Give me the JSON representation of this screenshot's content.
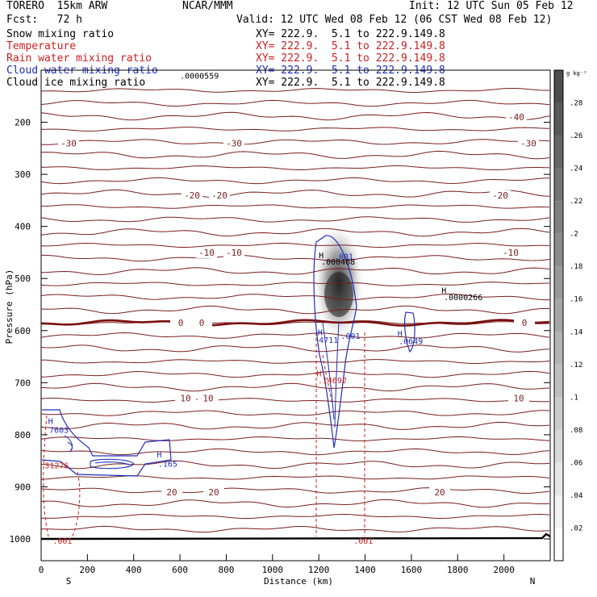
{
  "header": {
    "model": "TORERO  15km ARW",
    "center": "NCAR/MMM",
    "init": "Init: 12 UTC Sun 05 Feb 12",
    "fcst": "Fcst:   72 h",
    "valid": "Valid: 12 UTC Wed 08 Feb 12 (06 CST Wed 08 Feb 12)"
  },
  "fields": [
    {
      "label": "Snow mixing ratio",
      "xy": "XY= 222.9.  5.1 to 222.9.149.8",
      "color": "#000000"
    },
    {
      "label": "Temperature",
      "xy": "XY= 222.9.  5.1 to 222.9.149.8",
      "color": "#cc1e1e"
    },
    {
      "label": "Rain water mixing ratio",
      "xy": "XY= 222.9.  5.1 to 222.9.149.8",
      "color": "#cc1e1e"
    },
    {
      "label": "Cloud water mixing ratio",
      "xy": "XY= 222.9.  5.1 to 222.9.149.8",
      "color": "#1f2fbf"
    },
    {
      "label": "Cloud ice mixing ratio",
      "xy": "XY= 222.9.  5.1 to 222.9.149.8",
      "color": "#000000"
    }
  ],
  "chart_data": {
    "type": "heatmap",
    "xlabel": "Distance (km)",
    "ylabel": "Pressure (hPa)",
    "xlim": [
      0,
      2200
    ],
    "ylim": [
      1000,
      100
    ],
    "x_ticks": [
      0,
      200,
      400,
      600,
      800,
      1000,
      1200,
      1400,
      1600,
      1800,
      2000
    ],
    "y_ticks": [
      200,
      300,
      400,
      500,
      600,
      700,
      800,
      900,
      1000
    ],
    "endpoints": {
      "left": "S",
      "right": "N"
    },
    "colorbar": {
      "unit": "g kg⁻¹",
      "ticks": [
        ".02",
        ".04",
        ".06",
        ".08",
        ".1",
        ".12",
        ".14",
        ".16",
        ".18",
        ".2",
        ".22",
        ".24",
        ".26",
        ".28"
      ],
      "colors": [
        "#ffffff",
        "#f3f3f3",
        "#e6e6e6",
        "#d9d9d9",
        "#cccccc",
        "#bfbfbf",
        "#b3b3b3",
        "#a6a6a6",
        "#999999",
        "#8c8c8c",
        "#808080",
        "#737373",
        "#666666",
        "#595959",
        "#4d4d4d"
      ]
    },
    "temperature_contours": [
      {
        "label": "-40",
        "pressure": 190
      },
      {
        "label": "-30",
        "pressure": 240
      },
      {
        "label": "-20",
        "pressure": 340
      },
      {
        "label": "-10",
        "pressure": 450
      },
      {
        "label": "0",
        "pressure": 585
      },
      {
        "label": "10",
        "pressure": 730
      },
      {
        "label": "20",
        "pressure": 910
      }
    ],
    "annotations": [
      {
        "text": "H",
        "x": 1200,
        "p": 455,
        "color": "#000000"
      },
      {
        "text": ".000468",
        "x": 1210,
        "p": 467,
        "color": "#000000"
      },
      {
        "text": ".001",
        "x": 1265,
        "p": 457,
        "color": "#1f2fbf"
      },
      {
        "text": ".0000559",
        "x": 600,
        "p": 110,
        "color": "#000000"
      },
      {
        "text": "H",
        "x": 1730,
        "p": 522,
        "color": "#000000"
      },
      {
        "text": ".0000266",
        "x": 1740,
        "p": 535,
        "color": "#000000"
      },
      {
        "text": "H",
        "x": 1195,
        "p": 603,
        "color": "#1f2fbf"
      },
      {
        "text": "4711",
        "x": 1200,
        "p": 617,
        "color": "#1f2fbf"
      },
      {
        "text": ".001",
        "x": 1295,
        "p": 610,
        "color": "#1f2fbf"
      },
      {
        "text": "H",
        "x": 1540,
        "p": 605,
        "color": "#1f2fbf"
      },
      {
        "text": ".0649",
        "x": 1545,
        "p": 620,
        "color": "#1f2fbf"
      },
      {
        "text": "H",
        "x": 1190,
        "p": 682,
        "color": "#cc1e1e"
      },
      {
        "text": ".14692",
        "x": 1195,
        "p": 695,
        "color": "#cc1e1e"
      },
      {
        "text": "H",
        "x": 30,
        "p": 773,
        "color": "#1f2fbf"
      },
      {
        "text": "7603",
        "x": 35,
        "p": 790,
        "color": "#1f2fbf"
      },
      {
        "text": "31276",
        "x": 15,
        "p": 858,
        "color": "#cc1e1e"
      },
      {
        "text": "H",
        "x": 500,
        "p": 837,
        "color": "#1f2fbf"
      },
      {
        "text": ".165",
        "x": 505,
        "p": 855,
        "color": "#1f2fbf"
      },
      {
        "text": ".001",
        "x": 50,
        "p": 1003,
        "color": "#cc1e1e"
      },
      {
        "text": ".001",
        "x": 1350,
        "p": 1003,
        "color": "#cc1e1e"
      }
    ]
  }
}
